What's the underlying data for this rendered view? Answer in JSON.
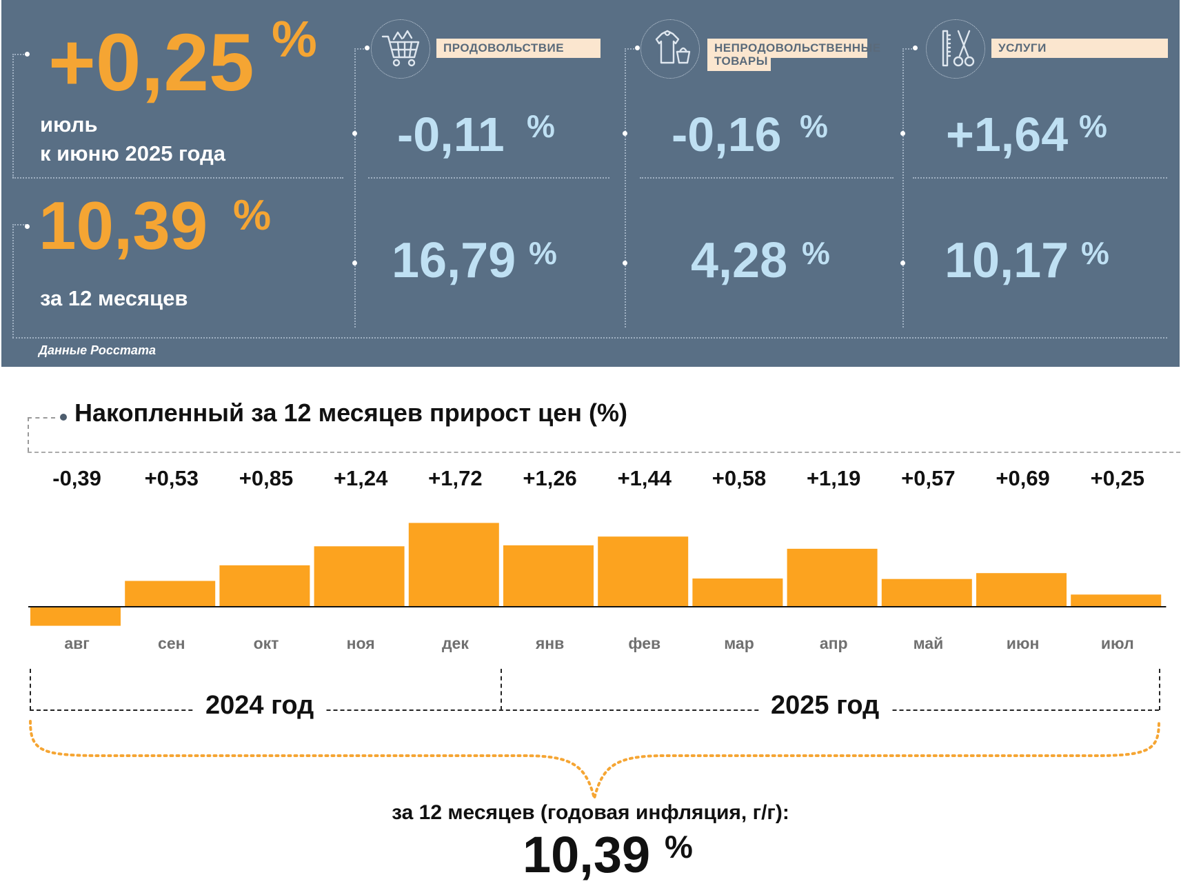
{
  "summary": {
    "monthly": {
      "value": "+0,25",
      "unit": "%",
      "line1": "июль",
      "line2": "к июню 2025 года"
    },
    "annual": {
      "value": "10,39",
      "unit": "%",
      "label": "за 12 месяцев"
    },
    "source": "Данные Росстата"
  },
  "categories": [
    {
      "label": "ПРОДОВОЛЬСТВИЕ",
      "monthly": "-0,11",
      "annual": "16,79",
      "unit": "%",
      "icon": "shopping-cart-icon"
    },
    {
      "label": "НЕПРОДОВОЛЬСТВЕННЫЕ ТОВАРЫ",
      "label_line1": "НЕПРОДОВОЛЬСТВЕННЫЕ",
      "label_line2": "ТОВАРЫ",
      "monthly": "-0,16",
      "annual": "4,28",
      "unit": "%",
      "icon": "clothing-icon"
    },
    {
      "label": "УСЛУГИ",
      "monthly": "+1,64",
      "annual": "10,17",
      "unit": "%",
      "icon": "scissors-comb-icon"
    }
  ],
  "chart_data": {
    "type": "bar",
    "title": "Накопленный за 12 месяцев прирост цен (%)",
    "categories": [
      "авг",
      "сен",
      "окт",
      "ноя",
      "дек",
      "янв",
      "фев",
      "мар",
      "апр",
      "май",
      "июн",
      "июл"
    ],
    "values": [
      -0.39,
      0.53,
      0.85,
      1.24,
      1.72,
      1.26,
      1.44,
      0.58,
      1.19,
      0.57,
      0.69,
      0.25
    ],
    "value_labels": [
      "-0,39",
      "+0,53",
      "+0,85",
      "+1,24",
      "+1,72",
      "+1,26",
      "+1,44",
      "+0,58",
      "+1,19",
      "+0,57",
      "+0,69",
      "+0,25"
    ],
    "years": [
      {
        "label": "2024 год",
        "months": 5
      },
      {
        "label": "2025 год",
        "months": 7
      }
    ],
    "bar_color": "#fca31f",
    "grid": false,
    "legend": "none"
  },
  "footer": {
    "label": "за 12 месяцев (годовая инфляция, г/г):",
    "value": "10,39",
    "unit": "%"
  }
}
